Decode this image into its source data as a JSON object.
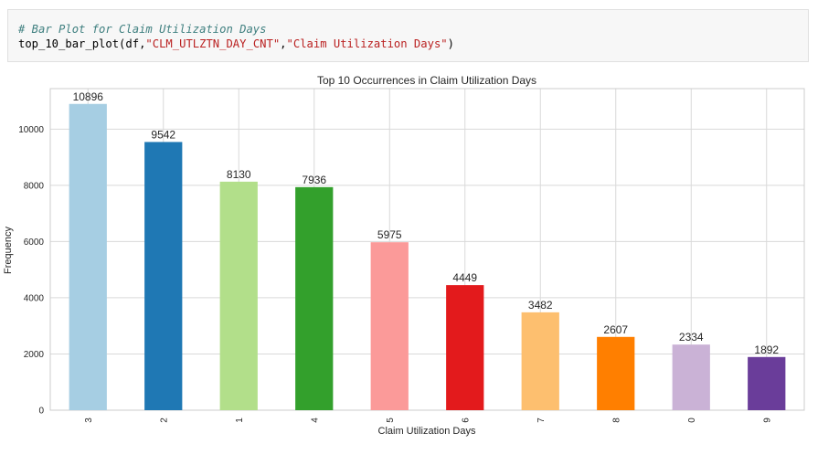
{
  "code_cell": {
    "comment": "# Bar Plot for Claim Utilization Days",
    "func": "top_10_bar_plot(df,",
    "arg1": "\"CLM_UTLZTN_DAY_CNT\"",
    "comma": ",",
    "arg2": "\"Claim Utilization Days\"",
    "close": ")"
  },
  "chart_data": {
    "type": "bar",
    "title": "Top 10 Occurrences in Claim Utilization Days",
    "xlabel": "Claim Utilization Days",
    "ylabel": "Frequency",
    "categories": [
      "3",
      "2",
      "1",
      "4",
      "5",
      "6",
      "7",
      "8",
      "0",
      "9"
    ],
    "values": [
      10896,
      9542,
      8130,
      7936,
      5975,
      4449,
      3482,
      2607,
      2334,
      1892
    ],
    "colors": [
      "#a6cee3",
      "#1f78b4",
      "#b2df8a",
      "#33a02c",
      "#fb9a99",
      "#e31a1c",
      "#fdbf6f",
      "#ff7f00",
      "#cab2d6",
      "#6a3d9a"
    ],
    "yticks": [
      0,
      2000,
      4000,
      6000,
      8000,
      10000
    ],
    "ylim": [
      0,
      11441
    ],
    "grid": true,
    "legend": "none"
  }
}
